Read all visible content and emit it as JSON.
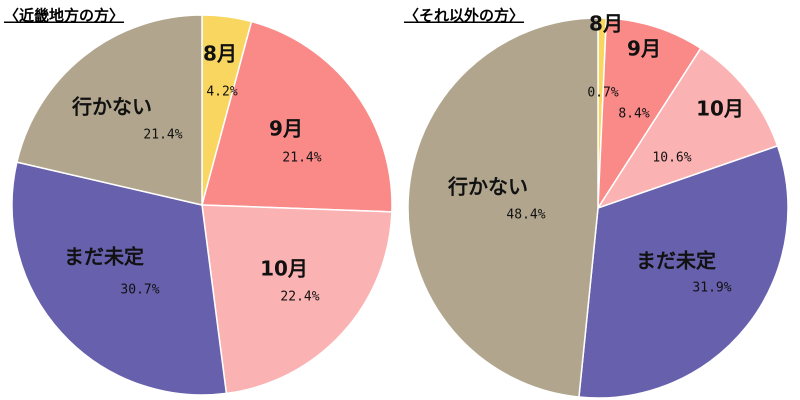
{
  "chart_data": [
    {
      "type": "pie",
      "title": "〈近畿地方の方〉",
      "categories": [
        "8月",
        "9月",
        "10月",
        "まだ未定",
        "行かない"
      ],
      "values": [
        4.2,
        21.4,
        22.4,
        30.7,
        21.4
      ],
      "value_labels": [
        "4.2%",
        "21.4%",
        "22.4%",
        "30.7%",
        "21.4%"
      ],
      "colors": [
        "#f9d65f",
        "#f98a88",
        "#fbb2b2",
        "#6760ad",
        "#b1a68d"
      ]
    },
    {
      "type": "pie",
      "title": "〈それ以外の方〉",
      "categories": [
        "8月",
        "9月",
        "10月",
        "まだ未定",
        "行かない"
      ],
      "values": [
        0.7,
        8.4,
        10.6,
        31.9,
        48.4
      ],
      "value_labels": [
        "0.7%",
        "8.4%",
        "10.6%",
        "31.9%",
        "48.4%"
      ],
      "colors": [
        "#f9d65f",
        "#f98a88",
        "#fbb2b2",
        "#6760ad",
        "#b1a68d"
      ]
    }
  ]
}
